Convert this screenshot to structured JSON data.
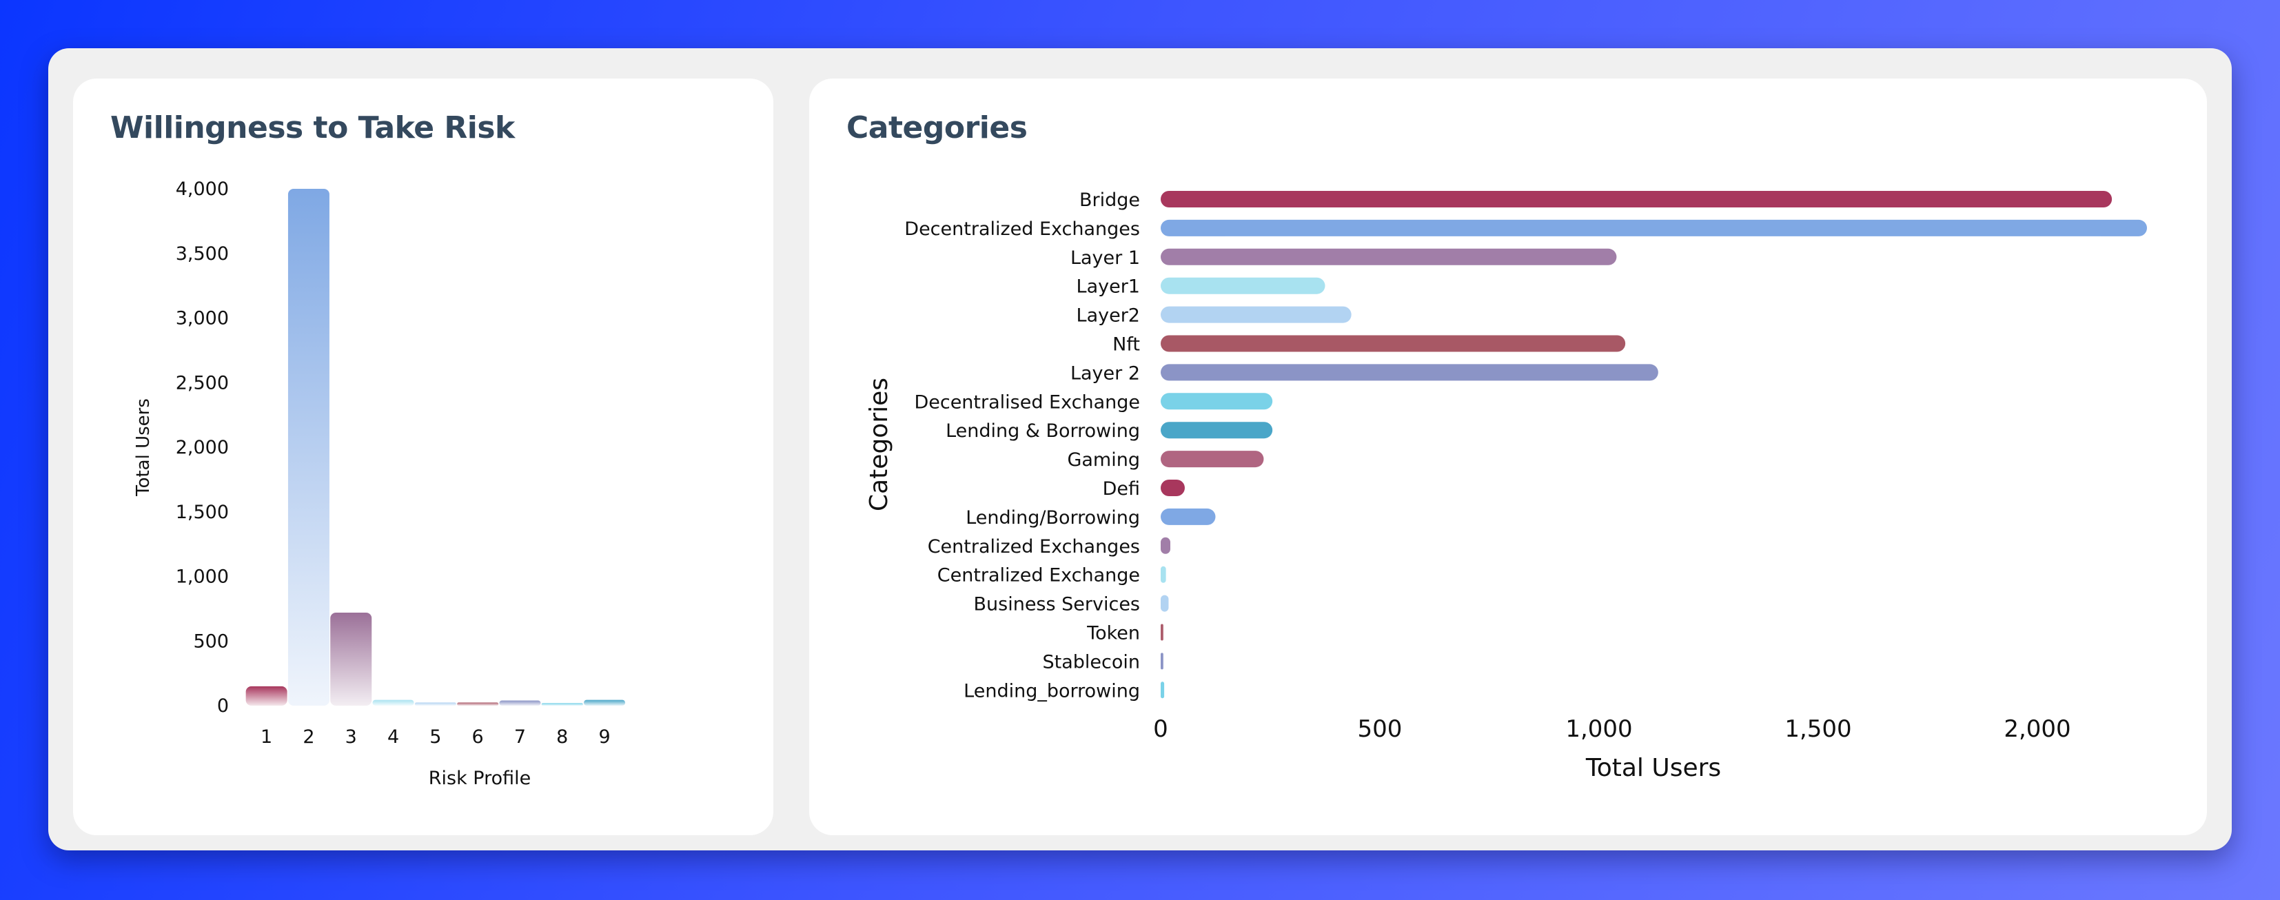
{
  "panels": {
    "risk": {
      "title": "Willingness to Take Risk"
    },
    "categories": {
      "title": "Categories"
    }
  },
  "chart_data": [
    {
      "type": "bar",
      "orientation": "vertical",
      "title": "Willingness to Take Risk",
      "xlabel": "Risk Profile",
      "ylabel": "Total Users",
      "categories": [
        "1",
        "2",
        "3",
        "4",
        "5",
        "6",
        "7",
        "8",
        "9"
      ],
      "values": [
        150,
        4000,
        720,
        45,
        25,
        25,
        40,
        20,
        45
      ],
      "ylim": [
        0,
        4000
      ],
      "yticks": [
        0,
        500,
        1000,
        1500,
        2000,
        2500,
        3000,
        3500,
        4000
      ],
      "ytick_labels": [
        "0",
        "500",
        "1,000",
        "1,500",
        "2,000",
        "2,500",
        "3,000",
        "3,500",
        "4,000"
      ],
      "colors": [
        "#a8375d",
        "#7fa8e4",
        "#9b7098",
        "#a8e2f0",
        "#b2d3f2",
        "#ad5d6c",
        "#8b94c6",
        "#7ad2e8",
        "#4aa6c8"
      ],
      "grid": false,
      "legend": "none"
    },
    {
      "type": "bar",
      "orientation": "horizontal",
      "title": "Categories",
      "xlabel": "Total Users",
      "ylabel": "Categories",
      "categories": [
        "Bridge",
        "Decentralized Exchanges",
        "Layer 1",
        "Layer1",
        "Layer2",
        "Nft",
        "Layer 2",
        "Decentralised Exchange",
        "Lending & Borrowing",
        "Gaming",
        "Defi",
        "Lending/Borrowing",
        "Centralized Exchanges",
        "Centralized Exchange",
        "Business Services",
        "Token",
        "Stablecoin",
        "Lending_borrowing"
      ],
      "values": [
        2170,
        2250,
        1040,
        375,
        435,
        1060,
        1135,
        255,
        255,
        235,
        55,
        125,
        22,
        12,
        18,
        6,
        6,
        8
      ],
      "xlim": [
        0,
        2300
      ],
      "xticks": [
        0,
        500,
        1000,
        1500,
        2000
      ],
      "xtick_labels": [
        "0",
        "500",
        "1,000",
        "1,500",
        "2,000"
      ],
      "colors": [
        "#a8375d",
        "#7fa8e4",
        "#a17ea8",
        "#a8e2f0",
        "#b2d3f2",
        "#a85865",
        "#8b94c6",
        "#7ad2e8",
        "#4aa6c8",
        "#b06581",
        "#a8375d",
        "#7fa8e4",
        "#a17ea8",
        "#a8e2f0",
        "#b2d3f2",
        "#ad5d6c",
        "#8b94c6",
        "#7ad2e8"
      ],
      "grid": false,
      "legend": "none"
    }
  ]
}
